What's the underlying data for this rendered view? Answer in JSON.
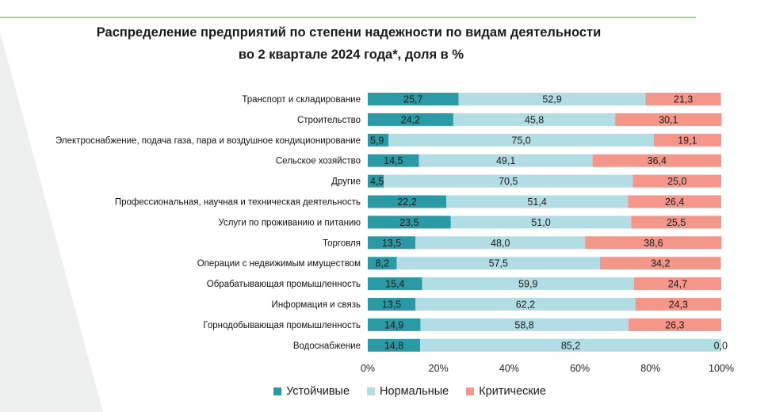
{
  "chart_data": {
    "type": "bar",
    "orientation": "horizontal",
    "stacked": true,
    "title": "Распределение предприятий по степени надежности по видам деятельности",
    "subtitle": "во 2 квартале 2024 года*, доля в %",
    "categories": [
      "Транспорт и складирование",
      "Строительство",
      "Электроснабжение, подача газа, пара и воздушное  кондиционирование",
      "Сельское хозяйство",
      "Другие",
      "Профессиональная, научная и техническая деятельность",
      "Услуги по проживанию и питанию",
      "Торговля",
      "Операции с недвижимым имуществом",
      "Обрабатывающая промышленность",
      "Информация и связь",
      "Горнодобывающая промышленность",
      "Водоснабжение"
    ],
    "series": [
      {
        "name": "Устойчивые",
        "color": "#2a9aa6",
        "values": [
          25.7,
          24.2,
          5.9,
          14.5,
          4.5,
          22.2,
          23.5,
          13.5,
          8.2,
          15.4,
          13.5,
          14.9,
          14.8
        ],
        "labels": [
          "25,7",
          "24,2",
          "5,9",
          "14,5",
          "4,5",
          "22,2",
          "23,5",
          "13,5",
          "8,2",
          "15,4",
          "13,5",
          "14,9",
          "14,8"
        ]
      },
      {
        "name": "Нормальные",
        "color": "#b3dde5",
        "values": [
          52.9,
          45.8,
          75.0,
          49.1,
          70.5,
          51.4,
          51.0,
          48.0,
          57.5,
          59.9,
          62.2,
          58.8,
          85.2
        ],
        "labels": [
          "52,9",
          "45,8",
          "75,0",
          "49,1",
          "70,5",
          "51,4",
          "51,0",
          "48,0",
          "57,5",
          "59,9",
          "62,2",
          "58,8",
          "85,2"
        ]
      },
      {
        "name": "Критические",
        "color": "#f4968a",
        "values": [
          21.3,
          30.1,
          19.1,
          36.4,
          25.0,
          26.4,
          25.5,
          38.6,
          34.2,
          24.7,
          24.3,
          26.3,
          0.0
        ],
        "labels": [
          "21,3",
          "30,1",
          "19,1",
          "36,4",
          "25,0",
          "26,4",
          "25,5",
          "38,6",
          "34,2",
          "24,7",
          "24,3",
          "26,3",
          "0,0"
        ]
      }
    ],
    "x_ticks": [
      "0%",
      "20%",
      "40%",
      "60%",
      "80%",
      "100%"
    ],
    "xlim": [
      0,
      100
    ],
    "grid": false,
    "legend_position": "bottom"
  },
  "decor": {
    "rule_color": "#a9d18e",
    "bg_shape_color": "#eef0ef"
  }
}
